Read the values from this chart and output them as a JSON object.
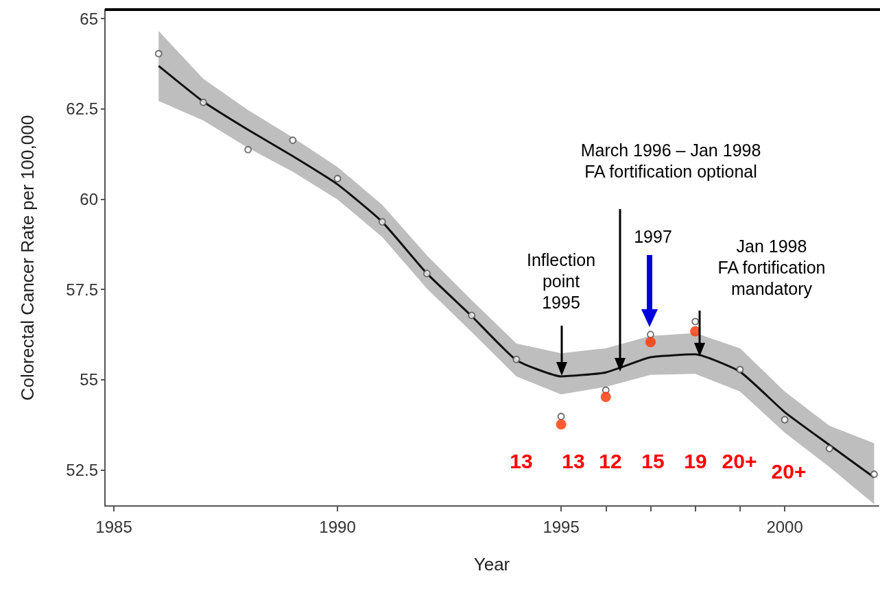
{
  "chart_data": {
    "type": "scatter",
    "xlabel": "Year",
    "ylabel": "Colorectal Cancer Rate per 100,000",
    "xlim": [
      1984.8,
      2002.1
    ],
    "ylim": [
      51.5,
      65.25
    ],
    "xticks": [
      1985,
      1990,
      1995,
      {
        "value": 1996,
        "label": null
      },
      {
        "value": 1997,
        "label": null
      },
      {
        "value": 1998,
        "label": null
      },
      {
        "value": 1999,
        "label": null
      },
      2000
    ],
    "yticks": [
      52.5,
      55,
      57.5,
      60,
      62.5,
      65
    ],
    "grid": false,
    "marker": "circle",
    "x": [
      1986,
      1987,
      1988,
      1989,
      1990,
      1991,
      1992,
      1993,
      1994,
      1995,
      1996,
      1997,
      1998,
      1999,
      2000,
      2001,
      2002
    ],
    "series": [
      {
        "type": "line",
        "marker": "none",
        "color": "#111111",
        "line_style": "solid",
        "x": [
          1986,
          1987,
          1988,
          1989,
          1990,
          1991,
          1992,
          1993,
          1994,
          1995,
          1996,
          1997,
          1998,
          1999,
          2000,
          2001,
          2002
        ],
        "values": [
          63.69,
          62.7,
          61.92,
          61.19,
          60.41,
          59.37,
          57.94,
          56.76,
          55.54,
          55.09,
          55.2,
          55.62,
          55.7,
          55.22,
          54.1,
          53.19,
          52.29
        ],
        "lower": [
          62.72,
          62.18,
          61.42,
          60.76,
          59.99,
          58.95,
          57.52,
          56.32,
          55.09,
          54.59,
          54.8,
          55.13,
          55.16,
          54.67,
          53.53,
          52.58,
          51.55
        ],
        "upper": [
          64.66,
          63.33,
          62.47,
          61.71,
          60.89,
          59.84,
          58.44,
          57.2,
          56.0,
          55.73,
          55.87,
          56.21,
          56.29,
          55.87,
          54.67,
          53.72,
          53.24
        ]
      },
      {
        "color": "#555555",
        "values": [
          64.03,
          62.68,
          61.37,
          61.63,
          60.57,
          59.37,
          57.94,
          56.78,
          55.56,
          53.98,
          54.71,
          56.25,
          56.61,
          55.28,
          53.89,
          53.09,
          52.38
        ]
      },
      {
        "color": "#ff3300",
        "x": [
          1995,
          1996,
          1997,
          1998
        ],
        "values": [
          53.76,
          54.52,
          56.04,
          56.34
        ]
      }
    ],
    "annotations": [
      "Inflection\npoint\n1995",
      "March 1996 – Jan 1998\nFA fortification optional",
      "1997",
      "Jan 1998\nFA fortification\nmandatory",
      "13",
      "13",
      "12",
      "15",
      "19",
      "20+",
      "20+"
    ]
  }
}
